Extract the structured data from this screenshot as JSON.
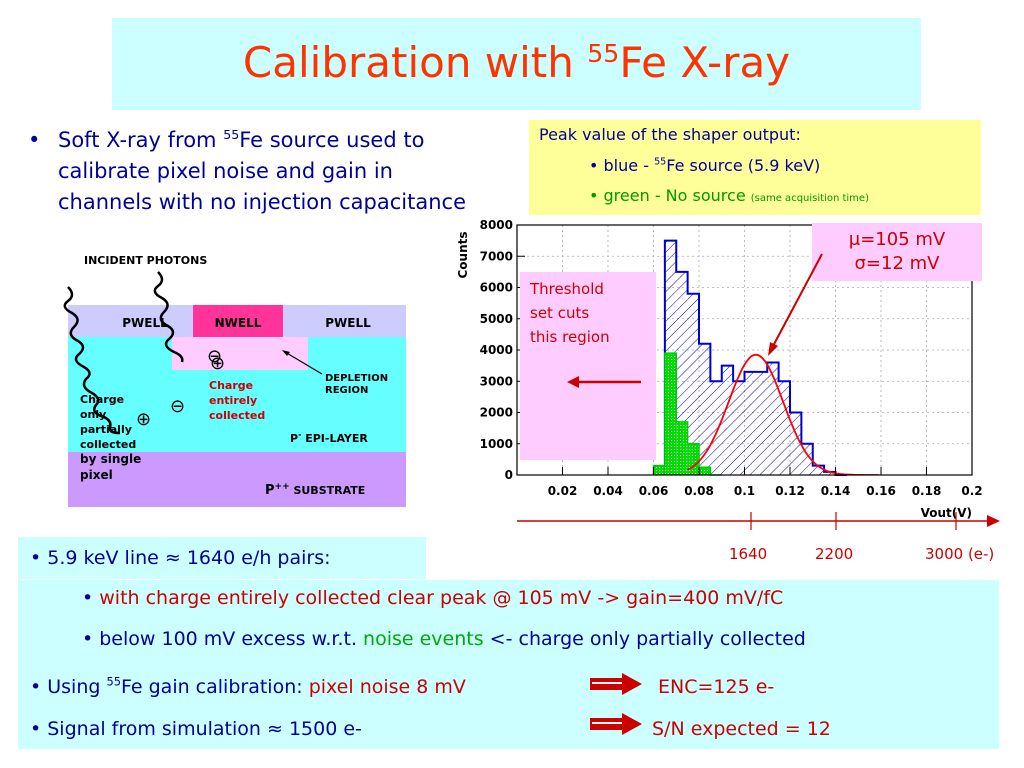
{
  "title": {
    "pre": "Calibration with ",
    "sup": "55",
    "post": "Fe X-ray"
  },
  "left_bullet": {
    "pre": "Soft X-ray from ",
    "sup": "55",
    "post": "Fe source used to calibrate pixel noise and gain in channels with no injection capacitance"
  },
  "diagram": {
    "incident": "INCIDENT PHOTONS",
    "pwell_left": "PWELL",
    "nwell": "NWELL",
    "pwell_right": "PWELL",
    "depletion": "DEPLETION REGION",
    "charge_collected": "Charge entirely collected",
    "charge_partial": "Charge only partially collected by single pixel",
    "epi": "P- EPI-LAYER",
    "epi_base": "P",
    "epi_sup": "-",
    "epi_rest": " EPI-LAYER",
    "substrate_base": "P",
    "substrate_sup": "++",
    "substrate_rest": " SUBSTRATE",
    "minus": "⊖",
    "plus": "⊕"
  },
  "peak_box": {
    "line1": "Peak value of the shaper output:",
    "line2_pre": "• blue  - ",
    "line2_sup": "55",
    "line2_post": "Fe source (5.9 keV)",
    "line3_main": "• green - No source ",
    "line3_small": "(same acquisition time)"
  },
  "fit_box": {
    "mu": "μ=105 mV",
    "sigma": "σ=12 mV"
  },
  "threshold_box": [
    "Threshold",
    "set cuts",
    "this region"
  ],
  "electron_scale": [
    "1640",
    "2200",
    "3000 (e-)"
  ],
  "bottom": {
    "energy_line": "• 5.9 keV line ≈ 1640 e/h pairs:",
    "sub1_dot": "• ",
    "sub1_text": "with charge entirely collected clear peak @ 105 mV -> gain=400 mV/fC",
    "sub2_pre": "• below 100 mV excess w.r.t. ",
    "sub2_green": "noise events",
    "sub2_post": " <- charge only partially collected",
    "using_pre": "• Using ",
    "using_sup": "55",
    "using_fe": "Fe",
    "using_mid": " gain calibration: ",
    "using_red": "pixel noise 8 mV",
    "enc": "ENC=125 e-",
    "signal": "• Signal from simulation ≈ 1500 e-",
    "sn": "S/N expected = 12"
  },
  "chart_data": {
    "type": "histogram",
    "xlabel": "Vout(V)",
    "ylabel": "Counts",
    "xlim": [
      0,
      0.2
    ],
    "ylim": [
      0,
      8000
    ],
    "x_ticks": [
      "0.02",
      "0.04",
      "0.06",
      "0.08",
      "0.1",
      "0.12",
      "0.14",
      "0.16",
      "0.18",
      "0.2"
    ],
    "y_ticks": [
      "0",
      "1000",
      "2000",
      "3000",
      "4000",
      "5000",
      "6000",
      "7000",
      "8000"
    ],
    "bin_width": 0.005,
    "series": [
      {
        "name": "blue",
        "color": "#0000cc",
        "bins_start": [
          0.065,
          0.07,
          0.075,
          0.08,
          0.085,
          0.09,
          0.095,
          0.1,
          0.105,
          0.11,
          0.115,
          0.12,
          0.125,
          0.13,
          0.135,
          0.14
        ],
        "values": [
          7500,
          6500,
          5800,
          4200,
          3000,
          3500,
          3000,
          3300,
          3300,
          3600,
          3000,
          2000,
          1000,
          300,
          100,
          0
        ]
      },
      {
        "name": "green",
        "color": "#00cc00",
        "bins_start": [
          0.06,
          0.065,
          0.07,
          0.075,
          0.08,
          0.085
        ],
        "values": [
          300,
          3900,
          1700,
          1000,
          250,
          0
        ]
      }
    ],
    "fit": {
      "mean": 0.105,
      "sigma": 0.012,
      "amplitude": 3850,
      "color": "#ff0000"
    }
  }
}
